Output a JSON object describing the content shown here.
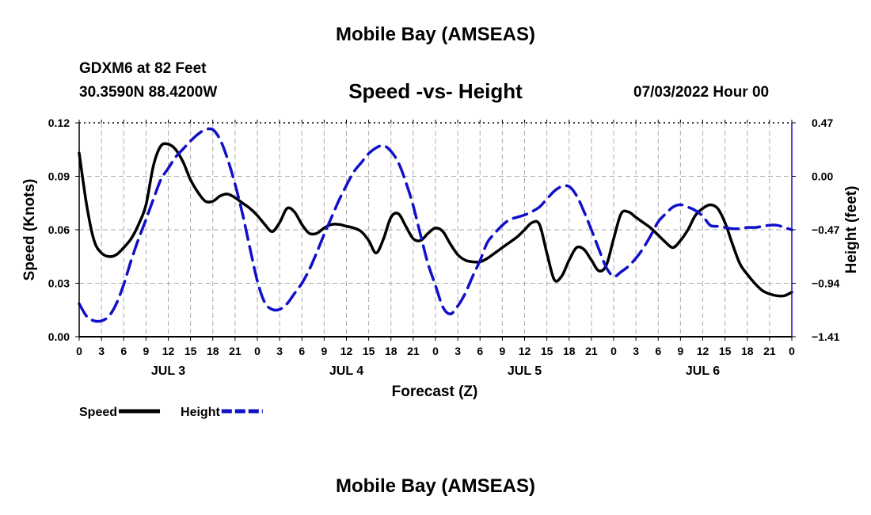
{
  "header": {
    "title": "Mobile Bay (AMSEAS)",
    "station": "GDXM6 at 82 Feet",
    "coords": "30.3590N  88.4200W",
    "subtitle": "Speed -vs- Height",
    "datetime": "07/03/2022 Hour 00"
  },
  "footer": {
    "title": "Mobile Bay (AMSEAS)"
  },
  "colors": {
    "speed": "#000000",
    "height": "#1010c8",
    "grid": "#aaaaaa"
  },
  "chart_data": {
    "type": "line",
    "xlabel": "Forecast (Z)",
    "ylabel_left": "Speed (Knots)",
    "ylabel_right": "Height (feet)",
    "x_range": [
      0,
      96
    ],
    "ylim_left": [
      0.0,
      0.12
    ],
    "ylim_right": [
      -1.41,
      0.47
    ],
    "y_ticks_left": [
      "0.00",
      "0.03",
      "0.06",
      "0.09",
      "0.12"
    ],
    "y_ticks_right": [
      "−1.41",
      "−0.94",
      "−0.47",
      "0.00",
      "0.47"
    ],
    "x_tick_labels": [
      "0",
      "3",
      "6",
      "9",
      "12",
      "15",
      "18",
      "21",
      "0",
      "3",
      "6",
      "9",
      "12",
      "15",
      "18",
      "21",
      "0",
      "3",
      "6",
      "9",
      "12",
      "15",
      "18",
      "21",
      "0",
      "3",
      "6",
      "9",
      "12",
      "15",
      "18",
      "21",
      "0"
    ],
    "day_labels": [
      {
        "label": "JUL 3",
        "x": 12
      },
      {
        "label": "JUL 4",
        "x": 36
      },
      {
        "label": "JUL 5",
        "x": 60
      },
      {
        "label": "JUL 6",
        "x": 84
      }
    ],
    "legend": [
      {
        "name": "Speed",
        "series": "speed"
      },
      {
        "name": "Height",
        "series": "height"
      }
    ],
    "series": [
      {
        "name": "Speed",
        "key": "speed",
        "axis": "left",
        "dash": false,
        "x": [
          0,
          1,
          2,
          3,
          4,
          5,
          6,
          7,
          8,
          9,
          10,
          11,
          12,
          13,
          14,
          15,
          16,
          17,
          18,
          19,
          20,
          21,
          22,
          23,
          24,
          25,
          26,
          27,
          28,
          29,
          30,
          31,
          32,
          33,
          34,
          35,
          36,
          37,
          38,
          39,
          40,
          41,
          42,
          43,
          44,
          45,
          46,
          47,
          48,
          49,
          50,
          51,
          52,
          53,
          54,
          55,
          56,
          57,
          58,
          59,
          60,
          61,
          62,
          63,
          64,
          65,
          66,
          67,
          68,
          69,
          70,
          71,
          72,
          73,
          74,
          75,
          76,
          77,
          78,
          79,
          80,
          81,
          82,
          83,
          84,
          85,
          86,
          87,
          88,
          89,
          90,
          91,
          92,
          93,
          94,
          95,
          96
        ],
        "values": [
          0.103,
          0.074,
          0.054,
          0.047,
          0.045,
          0.046,
          0.05,
          0.055,
          0.063,
          0.074,
          0.096,
          0.107,
          0.108,
          0.105,
          0.098,
          0.088,
          0.081,
          0.076,
          0.076,
          0.079,
          0.08,
          0.078,
          0.075,
          0.072,
          0.068,
          0.063,
          0.059,
          0.064,
          0.072,
          0.07,
          0.063,
          0.058,
          0.058,
          0.061,
          0.063,
          0.063,
          0.062,
          0.061,
          0.059,
          0.054,
          0.047,
          0.055,
          0.067,
          0.069,
          0.062,
          0.055,
          0.054,
          0.058,
          0.061,
          0.059,
          0.052,
          0.046,
          0.043,
          0.042,
          0.042,
          0.044,
          0.047,
          0.05,
          0.053,
          0.056,
          0.06,
          0.064,
          0.063,
          0.047,
          0.032,
          0.034,
          0.043,
          0.05,
          0.049,
          0.043,
          0.037,
          0.04,
          0.055,
          0.069,
          0.07,
          0.067,
          0.064,
          0.061,
          0.057,
          0.053,
          0.05,
          0.054,
          0.06,
          0.068,
          0.072,
          0.074,
          0.072,
          0.064,
          0.052,
          0.041,
          0.035,
          0.03,
          0.026,
          0.024,
          0.023,
          0.023,
          0.025
        ]
      },
      {
        "name": "Height",
        "key": "height",
        "axis": "right",
        "dash": true,
        "x": [
          0,
          1,
          2,
          3,
          4,
          5,
          6,
          7,
          8,
          9,
          10,
          11,
          12,
          13,
          14,
          15,
          16,
          17,
          18,
          19,
          20,
          21,
          22,
          23,
          24,
          25,
          26,
          27,
          28,
          29,
          30,
          31,
          32,
          33,
          34,
          35,
          36,
          37,
          38,
          39,
          40,
          41,
          42,
          43,
          44,
          45,
          46,
          47,
          48,
          49,
          50,
          51,
          52,
          53,
          54,
          55,
          56,
          57,
          58,
          59,
          60,
          61,
          62,
          63,
          64,
          65,
          66,
          67,
          68,
          69,
          70,
          71,
          72,
          73,
          74,
          75,
          76,
          77,
          78,
          79,
          80,
          81,
          82,
          83,
          84,
          85,
          86,
          87,
          88,
          89,
          90,
          91,
          92,
          93,
          94,
          95,
          96
        ],
        "values": [
          -1.12,
          -1.23,
          -1.27,
          -1.27,
          -1.23,
          -1.12,
          -0.95,
          -0.74,
          -0.55,
          -0.38,
          -0.2,
          -0.03,
          0.07,
          0.17,
          0.24,
          0.31,
          0.37,
          0.41,
          0.41,
          0.32,
          0.15,
          -0.07,
          -0.33,
          -0.63,
          -0.92,
          -1.11,
          -1.17,
          -1.17,
          -1.12,
          -1.03,
          -0.94,
          -0.82,
          -0.67,
          -0.51,
          -0.36,
          -0.21,
          -0.08,
          0.04,
          0.12,
          0.2,
          0.25,
          0.27,
          0.22,
          0.12,
          -0.05,
          -0.26,
          -0.52,
          -0.77,
          -0.96,
          -1.15,
          -1.21,
          -1.14,
          -1.03,
          -0.88,
          -0.74,
          -0.58,
          -0.5,
          -0.43,
          -0.38,
          -0.36,
          -0.34,
          -0.31,
          -0.27,
          -0.2,
          -0.13,
          -0.09,
          -0.09,
          -0.17,
          -0.31,
          -0.47,
          -0.64,
          -0.8,
          -0.88,
          -0.84,
          -0.79,
          -0.72,
          -0.63,
          -0.52,
          -0.4,
          -0.33,
          -0.27,
          -0.25,
          -0.27,
          -0.3,
          -0.35,
          -0.43,
          -0.44,
          -0.45,
          -0.46,
          -0.46,
          -0.45,
          -0.45,
          -0.44,
          -0.43,
          -0.43,
          -0.45,
          -0.47
        ]
      }
    ]
  }
}
